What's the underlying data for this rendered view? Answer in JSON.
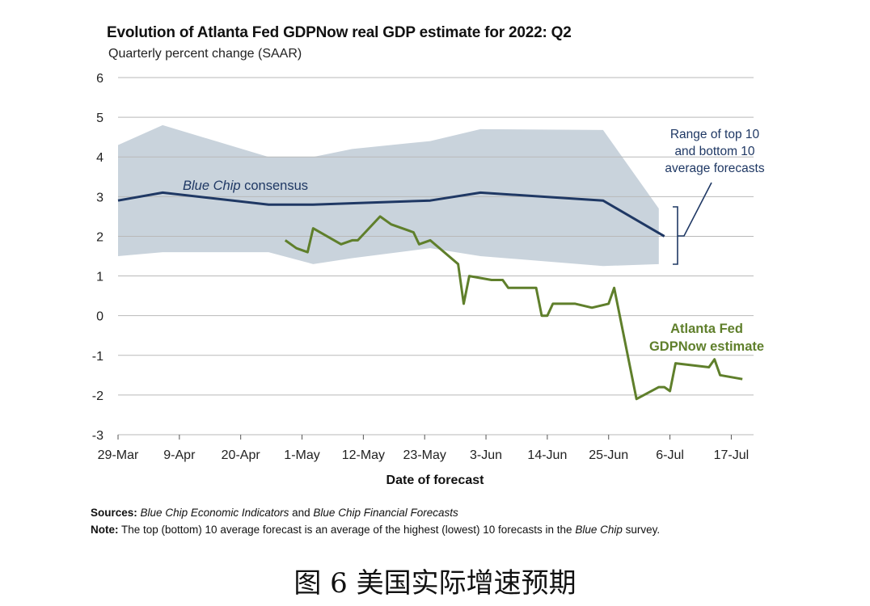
{
  "chart_data": {
    "type": "line",
    "title": "Evolution of Atlanta Fed GDPNow real GDP estimate for 2022: Q2",
    "subtitle": "Quarterly percent change (SAAR)",
    "xlabel": "Date of forecast",
    "ylabel": "",
    "ylim": [
      -3,
      6
    ],
    "yticks": [
      6,
      5,
      4,
      3,
      2,
      1,
      0,
      -1,
      -2,
      -3
    ],
    "xticks": [
      {
        "label": "29-Mar",
        "day": 0
      },
      {
        "label": "9-Apr",
        "day": 11
      },
      {
        "label": "20-Apr",
        "day": 22
      },
      {
        "label": "1-May",
        "day": 33
      },
      {
        "label": "12-May",
        "day": 44
      },
      {
        "label": "23-May",
        "day": 55
      },
      {
        "label": "3-Jun",
        "day": 66
      },
      {
        "label": "14-Jun",
        "day": 77
      },
      {
        "label": "25-Jun",
        "day": 88
      },
      {
        "label": "6-Jul",
        "day": 99
      },
      {
        "label": "17-Jul",
        "day": 110
      }
    ],
    "grid": true,
    "range_band": {
      "name": "Range of top 10 and bottom 10 average forecasts",
      "color": "#c9d3dc",
      "upper": [
        [
          0,
          4.3
        ],
        [
          8,
          4.8
        ],
        [
          27,
          4.0
        ],
        [
          35,
          4.0
        ],
        [
          42,
          4.2
        ],
        [
          56,
          4.4
        ],
        [
          65,
          4.7
        ],
        [
          87,
          4.68
        ],
        [
          97,
          2.7
        ]
      ],
      "lower": [
        [
          0,
          1.5
        ],
        [
          8,
          1.6
        ],
        [
          27,
          1.6
        ],
        [
          35,
          1.3
        ],
        [
          42,
          1.45
        ],
        [
          56,
          1.7
        ],
        [
          65,
          1.5
        ],
        [
          87,
          1.25
        ],
        [
          97,
          1.3
        ]
      ]
    },
    "series": [
      {
        "name": "Blue Chip consensus",
        "color": "#1f3864",
        "points": [
          [
            0,
            2.9
          ],
          [
            8,
            3.1
          ],
          [
            27,
            2.8
          ],
          [
            35,
            2.8
          ],
          [
            56,
            2.9
          ],
          [
            65,
            3.1
          ],
          [
            87,
            2.9
          ],
          [
            98,
            2.0
          ]
        ]
      },
      {
        "name": "Atlanta Fed GDPNow estimate",
        "color": "#5f7f2b",
        "points": [
          [
            30,
            1.9
          ],
          [
            32,
            1.7
          ],
          [
            34,
            1.6
          ],
          [
            35,
            2.2
          ],
          [
            40,
            1.8
          ],
          [
            42,
            1.9
          ],
          [
            43,
            1.9
          ],
          [
            47,
            2.5
          ],
          [
            49,
            2.3
          ],
          [
            53,
            2.1
          ],
          [
            54,
            1.8
          ],
          [
            56,
            1.9
          ],
          [
            61,
            1.3
          ],
          [
            62,
            0.3
          ],
          [
            63,
            1.0
          ],
          [
            67,
            0.9
          ],
          [
            69,
            0.9
          ],
          [
            70,
            0.7
          ],
          [
            75,
            0.7
          ],
          [
            76,
            0.0
          ],
          [
            77,
            0.0
          ],
          [
            78,
            0.3
          ],
          [
            82,
            0.3
          ],
          [
            85,
            0.2
          ],
          [
            88,
            0.3
          ],
          [
            89,
            0.7
          ],
          [
            93,
            -2.1
          ],
          [
            97,
            -1.8
          ],
          [
            98,
            -1.8
          ],
          [
            99,
            -1.9
          ],
          [
            100,
            -1.2
          ],
          [
            106,
            -1.3
          ],
          [
            107,
            -1.1
          ],
          [
            108,
            -1.5
          ],
          [
            112,
            -1.6
          ]
        ]
      }
    ],
    "annotations": {
      "range_label": [
        "Range of top 10",
        "and bottom 10",
        "average forecasts"
      ],
      "bluechip_label_italic": "Blue Chip",
      "bluechip_label_rest": " consensus",
      "gdpnow_label": [
        "Atlanta Fed",
        "GDPNow estimate"
      ]
    }
  },
  "notes": {
    "sources_label": "Sources:",
    "sources_part1": "Blue Chip Economic Indicators",
    "sources_and": " and ",
    "sources_part2": "Blue Chip Financial Forecasts",
    "note_label": "Note:",
    "note_text": " The top (bottom) 10 average forecast is an average of the highest (lowest) 10 forecasts in the ",
    "note_italic": "Blue Chip",
    "note_end": " survey."
  },
  "caption": "图 6  美国实际增速预期"
}
